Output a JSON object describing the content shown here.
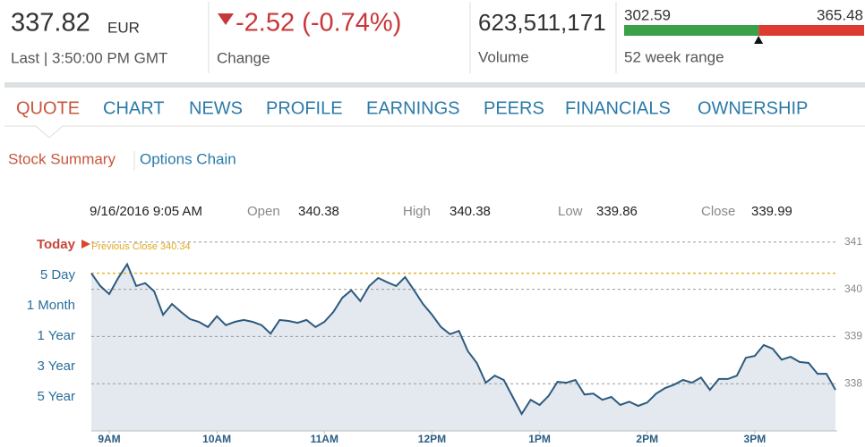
{
  "header": {
    "price": 337.82,
    "currency": "EUR",
    "last_time": "Last | 3:50:00 PM GMT",
    "change": "-2.52 (-0.74%)",
    "change_label": "Change",
    "volume": "623,511,171",
    "volume_label": "Volume",
    "range_low": 302.59,
    "range_high": 365.48,
    "range_label": "52 week range"
  },
  "tabs": [
    "QUOTE",
    "CHART",
    "NEWS",
    "PROFILE",
    "EARNINGS",
    "PEERS",
    "FINANCIALS",
    "OWNERSHIP"
  ],
  "subtabs": [
    "Stock Summary",
    "Options Chain"
  ],
  "range_buttons": [
    "Today",
    "5 Day",
    "1 Month",
    "1 Year",
    "3 Year",
    "5 Year"
  ],
  "quote_info": {
    "date": "9/16/2016 9:05 AM",
    "open_label": "Open",
    "open": 340.38,
    "high_label": "High",
    "high": 340.38,
    "low_label": "Low",
    "low": 339.86,
    "close_label": "Close",
    "close": 339.99
  },
  "chart_data": {
    "type": "area",
    "x": [
      530,
      535,
      540,
      545,
      550,
      555,
      560,
      565,
      570,
      575,
      580,
      585,
      590,
      595,
      600,
      605,
      610,
      615,
      620,
      625,
      630,
      635,
      640,
      645,
      650,
      655,
      660,
      665,
      670,
      675,
      680,
      685,
      690,
      695,
      700,
      705,
      710,
      715,
      720,
      725,
      730,
      735,
      740,
      745,
      750,
      755,
      760,
      765,
      770,
      775,
      780,
      785,
      790,
      795,
      800,
      805,
      810,
      815,
      820,
      825,
      830,
      835,
      840,
      845,
      850,
      855,
      860,
      865,
      870,
      875,
      880,
      885,
      890,
      895,
      900,
      905,
      910,
      915,
      920,
      925,
      930,
      935,
      940,
      945
    ],
    "series": [
      {
        "color": "#2c5a7e",
        "fill_color": "#e4e9ef",
        "values": [
          340.34,
          340.07,
          339.9,
          340.24,
          340.53,
          340.07,
          340.13,
          339.96,
          339.46,
          339.69,
          339.52,
          339.37,
          339.31,
          339.2,
          339.43,
          339.24,
          339.31,
          339.35,
          339.31,
          339.24,
          339.06,
          339.35,
          339.33,
          339.29,
          339.35,
          339.2,
          339.31,
          339.52,
          339.82,
          339.98,
          339.75,
          340.07,
          340.24,
          340.15,
          340.07,
          340.26,
          339.98,
          339.69,
          339.46,
          339.2,
          339.05,
          339.12,
          338.69,
          338.44,
          338.02,
          338.17,
          338.08,
          337.72,
          337.36,
          337.66,
          337.55,
          337.74,
          338.04,
          338.02,
          338.08,
          337.77,
          337.79,
          337.66,
          337.72,
          337.55,
          337.62,
          337.53,
          337.6,
          337.79,
          337.91,
          337.98,
          338.08,
          338.02,
          338.13,
          337.87,
          338.1,
          338.1,
          338.17,
          338.55,
          338.59,
          338.82,
          338.74,
          338.51,
          338.57,
          338.46,
          338.44,
          338.21,
          338.21,
          337.87
        ]
      }
    ],
    "reference_line": {
      "value": 340.34,
      "label": "Previous Close 340.34",
      "color": "#e3b52b"
    },
    "xlim": [
      530,
      946
    ],
    "xticks": [
      {
        "value": 540,
        "label": "9AM"
      },
      {
        "value": 600,
        "label": "10AM"
      },
      {
        "value": 660,
        "label": "11AM"
      },
      {
        "value": 720,
        "label": "12PM"
      },
      {
        "value": 780,
        "label": "1PM"
      },
      {
        "value": 840,
        "label": "2PM"
      },
      {
        "value": 900,
        "label": "3PM"
      }
    ],
    "ylim": [
      337.0,
      341.11
    ],
    "yticks": [
      338,
      339,
      340,
      341
    ],
    "grid": true
  }
}
